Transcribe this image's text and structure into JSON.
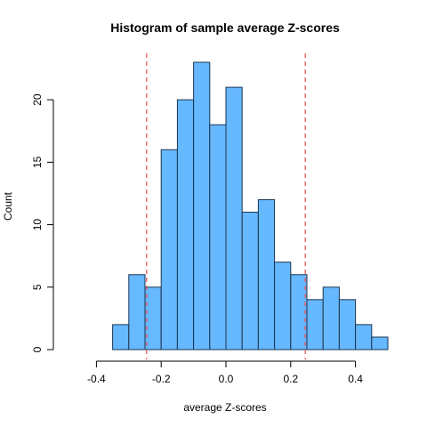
{
  "chart_data": {
    "type": "bar",
    "title": "Histogram of sample average Z-scores",
    "xlabel": "average Z-scores",
    "ylabel": "Count",
    "bin_width": 0.05,
    "bins": [
      {
        "start": -0.35,
        "end": -0.3,
        "count": 2
      },
      {
        "start": -0.3,
        "end": -0.25,
        "count": 6
      },
      {
        "start": -0.25,
        "end": -0.2,
        "count": 5
      },
      {
        "start": -0.2,
        "end": -0.15,
        "count": 16
      },
      {
        "start": -0.15,
        "end": -0.1,
        "count": 20
      },
      {
        "start": -0.1,
        "end": -0.05,
        "count": 23
      },
      {
        "start": -0.05,
        "end": 0.0,
        "count": 18
      },
      {
        "start": 0.0,
        "end": 0.05,
        "count": 21
      },
      {
        "start": 0.05,
        "end": 0.1,
        "count": 11
      },
      {
        "start": 0.1,
        "end": 0.15,
        "count": 12
      },
      {
        "start": 0.15,
        "end": 0.2,
        "count": 7
      },
      {
        "start": 0.2,
        "end": 0.25,
        "count": 6
      },
      {
        "start": 0.25,
        "end": 0.3,
        "count": 4
      },
      {
        "start": 0.3,
        "end": 0.35,
        "count": 5
      },
      {
        "start": 0.35,
        "end": 0.4,
        "count": 4
      },
      {
        "start": 0.4,
        "end": 0.45,
        "count": 2
      },
      {
        "start": 0.45,
        "end": 0.5,
        "count": 1
      }
    ],
    "xlim": [
      -0.5,
      0.5
    ],
    "ylim": [
      0,
      23
    ],
    "x_ticks": [
      {
        "value": -0.4,
        "label": "-0.4"
      },
      {
        "value": -0.2,
        "label": "-0.2"
      },
      {
        "value": 0.0,
        "label": "0.0"
      },
      {
        "value": 0.2,
        "label": "0.2"
      },
      {
        "value": 0.4,
        "label": "0.4"
      }
    ],
    "y_ticks": [
      {
        "value": 0,
        "label": "0"
      },
      {
        "value": 5,
        "label": "5"
      },
      {
        "value": 10,
        "label": "10"
      },
      {
        "value": 15,
        "label": "15"
      },
      {
        "value": 20,
        "label": "20"
      }
    ],
    "reference_lines": [
      {
        "x": -0.245,
        "style": "dashed",
        "color": "#ee5050"
      },
      {
        "x": 0.245,
        "style": "dashed",
        "color": "#ee5050"
      }
    ],
    "grid": false,
    "bar_color": "#66b8ff",
    "bar_edge_color": "#1a3552"
  }
}
